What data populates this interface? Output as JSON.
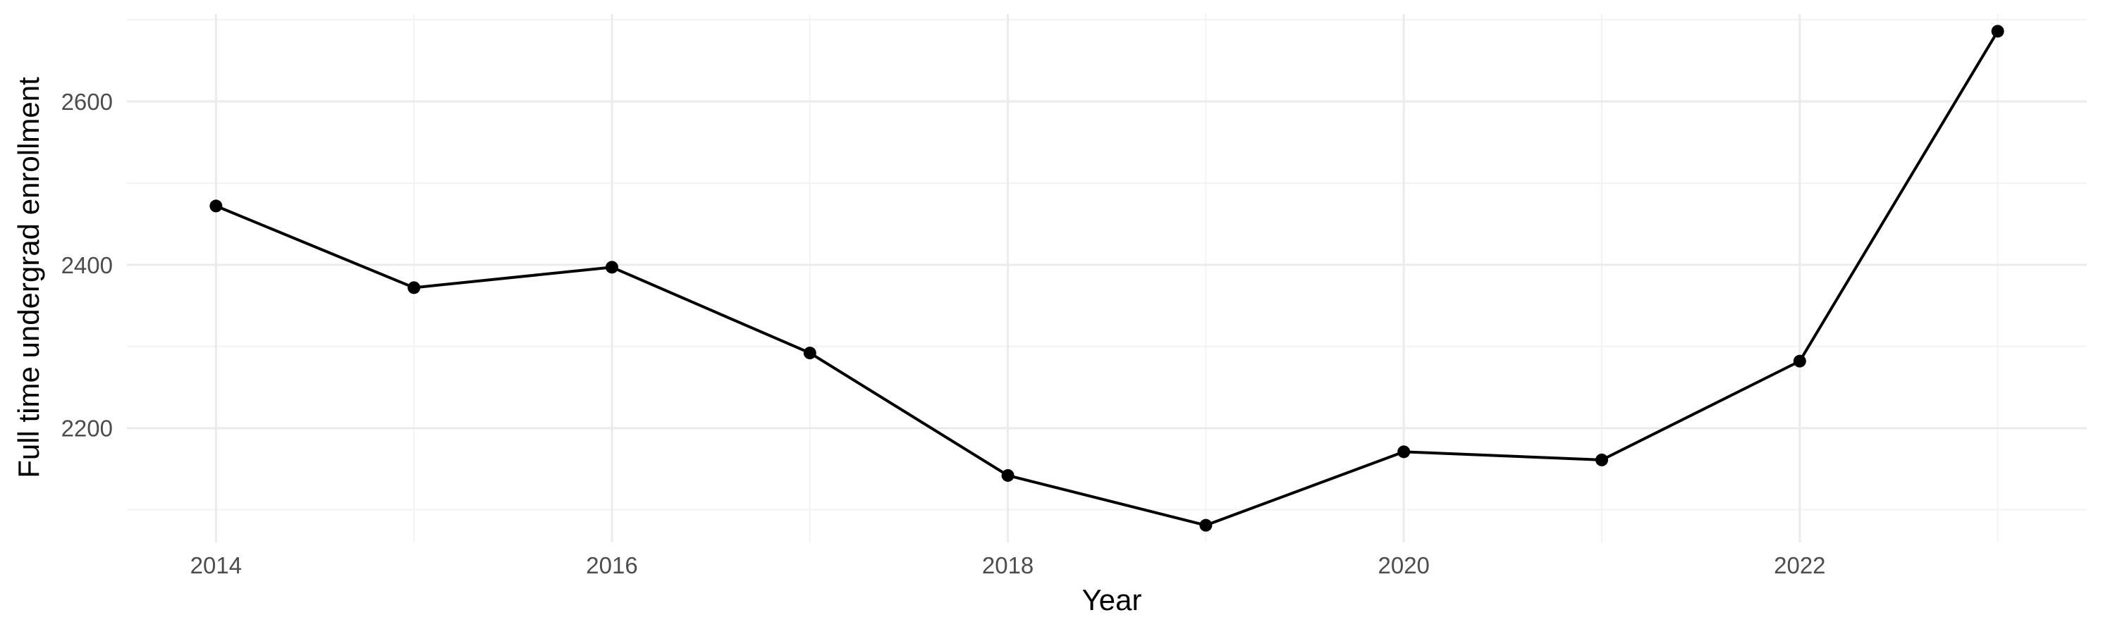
{
  "chart_data": {
    "type": "line",
    "xlabel": "Year",
    "ylabel": "Full time undergrad enrollment",
    "x": [
      2014,
      2015,
      2016,
      2017,
      2018,
      2019,
      2020,
      2021,
      2022,
      2023
    ],
    "series": [
      {
        "values": [
          2472,
          2372,
          2397,
          2292,
          2142,
          2081,
          2171,
          2161,
          2282,
          2686
        ]
      }
    ],
    "xlim": [
      2013.55,
      2023.45
    ],
    "ylim": [
      2060,
      2707
    ],
    "x_ticks": [
      2014,
      2016,
      2018,
      2020,
      2022
    ],
    "x_tick_labels": [
      "2014",
      "2016",
      "2018",
      "2020",
      "2022"
    ],
    "y_ticks": [
      2200,
      2400,
      2600
    ],
    "y_tick_labels": [
      "2200",
      "2400",
      "2600"
    ],
    "x_minor_ticks": [
      2015,
      2017,
      2019,
      2021,
      2023
    ],
    "y_minor_ticks": [
      2100,
      2300,
      2500,
      2700
    ],
    "grid": true,
    "legend": "none",
    "line_color": "#000000",
    "point_color": "#000000"
  }
}
